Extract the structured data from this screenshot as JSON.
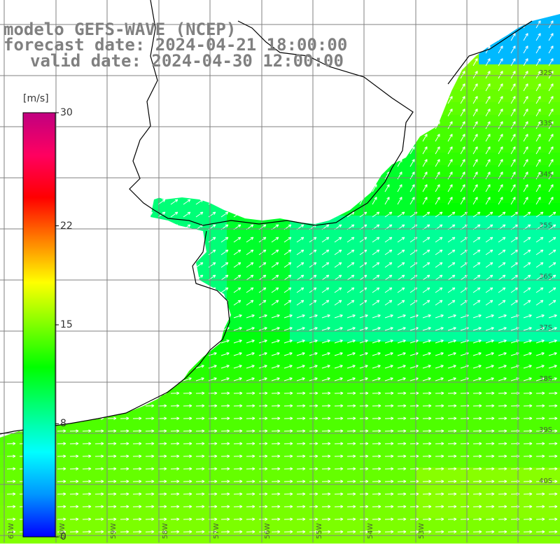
{
  "title": {
    "line1": "modelo GEFS-WAVE (NCEP)",
    "line2": "forecast date: 2024-04-21 18:00:00",
    "line3": "valid date: 2024-04-30 12:00:00"
  },
  "colorbar": {
    "unit": "[m/s]",
    "ticks": [
      {
        "value": 30,
        "label": "30"
      },
      {
        "value": 22,
        "label": "22"
      },
      {
        "value": 15,
        "label": "15"
      },
      {
        "value": 8,
        "label": "8"
      },
      {
        "value": 0,
        "label": "0"
      }
    ],
    "range": [
      0,
      30
    ],
    "colors": [
      "#0000ff",
      "#0096ff",
      "#00ffff",
      "#00ff80",
      "#00ff00",
      "#80ff00",
      "#ffff00",
      "#ff8000",
      "#ff0000",
      "#ff0060",
      "#c00080"
    ]
  },
  "map": {
    "ocean_default": "#40f080",
    "land_color": "#ffffff",
    "grid_color": "#808080",
    "coast_color": "#000000",
    "lat_labels": [
      "32S",
      "33S",
      "34S",
      "35S",
      "36S",
      "37S",
      "38S",
      "39S",
      "40S"
    ],
    "lon_labels": [
      "61W",
      "60W",
      "59W",
      "58W",
      "57W",
      "56W",
      "55W",
      "54W",
      "53W"
    ]
  }
}
